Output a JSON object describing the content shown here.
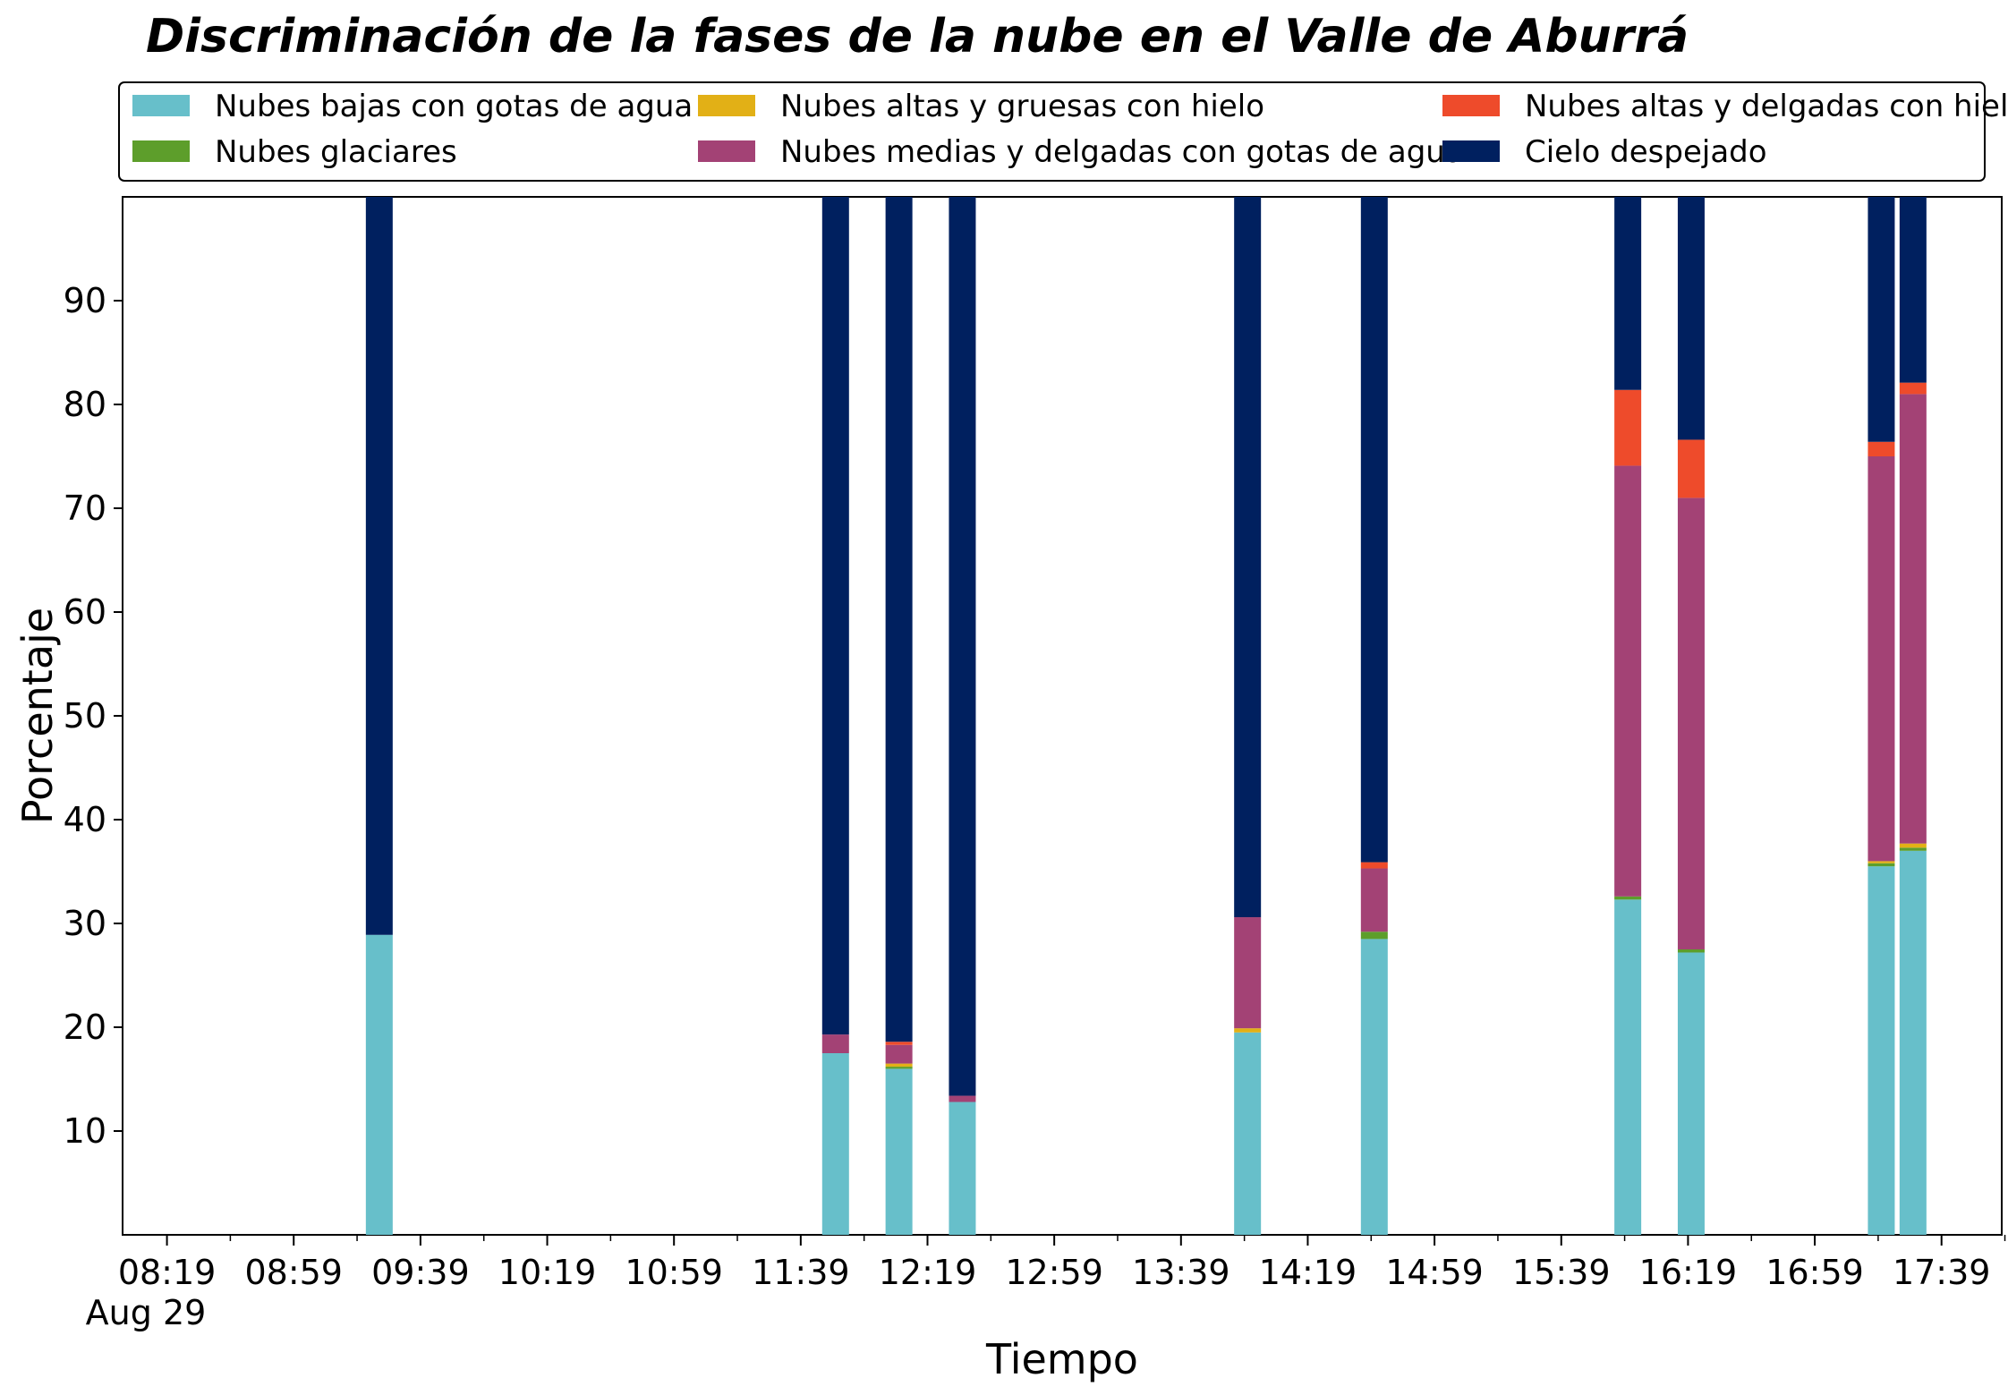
{
  "chart_data": {
    "type": "bar",
    "stacked": true,
    "title": "Discriminación de la fases de la nube en el Valle de Aburrá",
    "xlabel": "Tiempo",
    "ylabel": "Porcentaje",
    "ylim": [
      0,
      100
    ],
    "yticks": [
      10,
      20,
      30,
      40,
      50,
      60,
      70,
      80,
      90
    ],
    "x_axis": {
      "start": "08:19",
      "end": "17:49",
      "tick_labels": [
        "08:19",
        "08:59",
        "09:39",
        "10:19",
        "10:59",
        "11:39",
        "12:19",
        "12:59",
        "13:39",
        "14:19",
        "14:59",
        "15:39",
        "16:19",
        "16:59",
        "17:39"
      ],
      "date_label": "Aug 29"
    },
    "grid": false,
    "legend": {
      "placement": "top",
      "columns": 3
    },
    "x": [
      "09:26",
      "11:50",
      "12:10",
      "12:30",
      "14:00",
      "14:40",
      "16:00",
      "16:20",
      "17:20",
      "17:30"
    ],
    "series": [
      {
        "name": "Nubes bajas con gotas de agua",
        "color": "#67BFCA",
        "values": [
          28.9,
          17.5,
          16.0,
          12.8,
          19.5,
          28.5,
          32.3,
          27.2,
          35.5,
          37.0
        ]
      },
      {
        "name": "Nubes glaciares",
        "color": "#5D9E2B",
        "values": [
          0.0,
          0.0,
          0.2,
          0.0,
          0.0,
          0.7,
          0.3,
          0.3,
          0.3,
          0.3
        ]
      },
      {
        "name": "Nubes altas y gruesas con hielo",
        "color": "#E2B016",
        "values": [
          0.0,
          0.0,
          0.3,
          0.0,
          0.4,
          0.0,
          0.0,
          0.0,
          0.2,
          0.4
        ]
      },
      {
        "name": "Nubes medias y delgadas con gotas de agua",
        "color": "#A34275",
        "values": [
          0.0,
          1.8,
          1.8,
          0.6,
          10.7,
          6.1,
          41.5,
          43.5,
          39.0,
          43.3
        ]
      },
      {
        "name": "Nubes altas y delgadas con hielo",
        "color": "#EE4B2B",
        "values": [
          0.0,
          0.0,
          0.3,
          0.0,
          0.0,
          0.6,
          7.3,
          5.6,
          1.4,
          1.1
        ]
      },
      {
        "name": "Cielo despejado",
        "color": "#00205F",
        "values": [
          71.1,
          80.7,
          81.4,
          86.6,
          69.4,
          64.1,
          18.6,
          23.4,
          23.6,
          17.9
        ]
      }
    ]
  }
}
